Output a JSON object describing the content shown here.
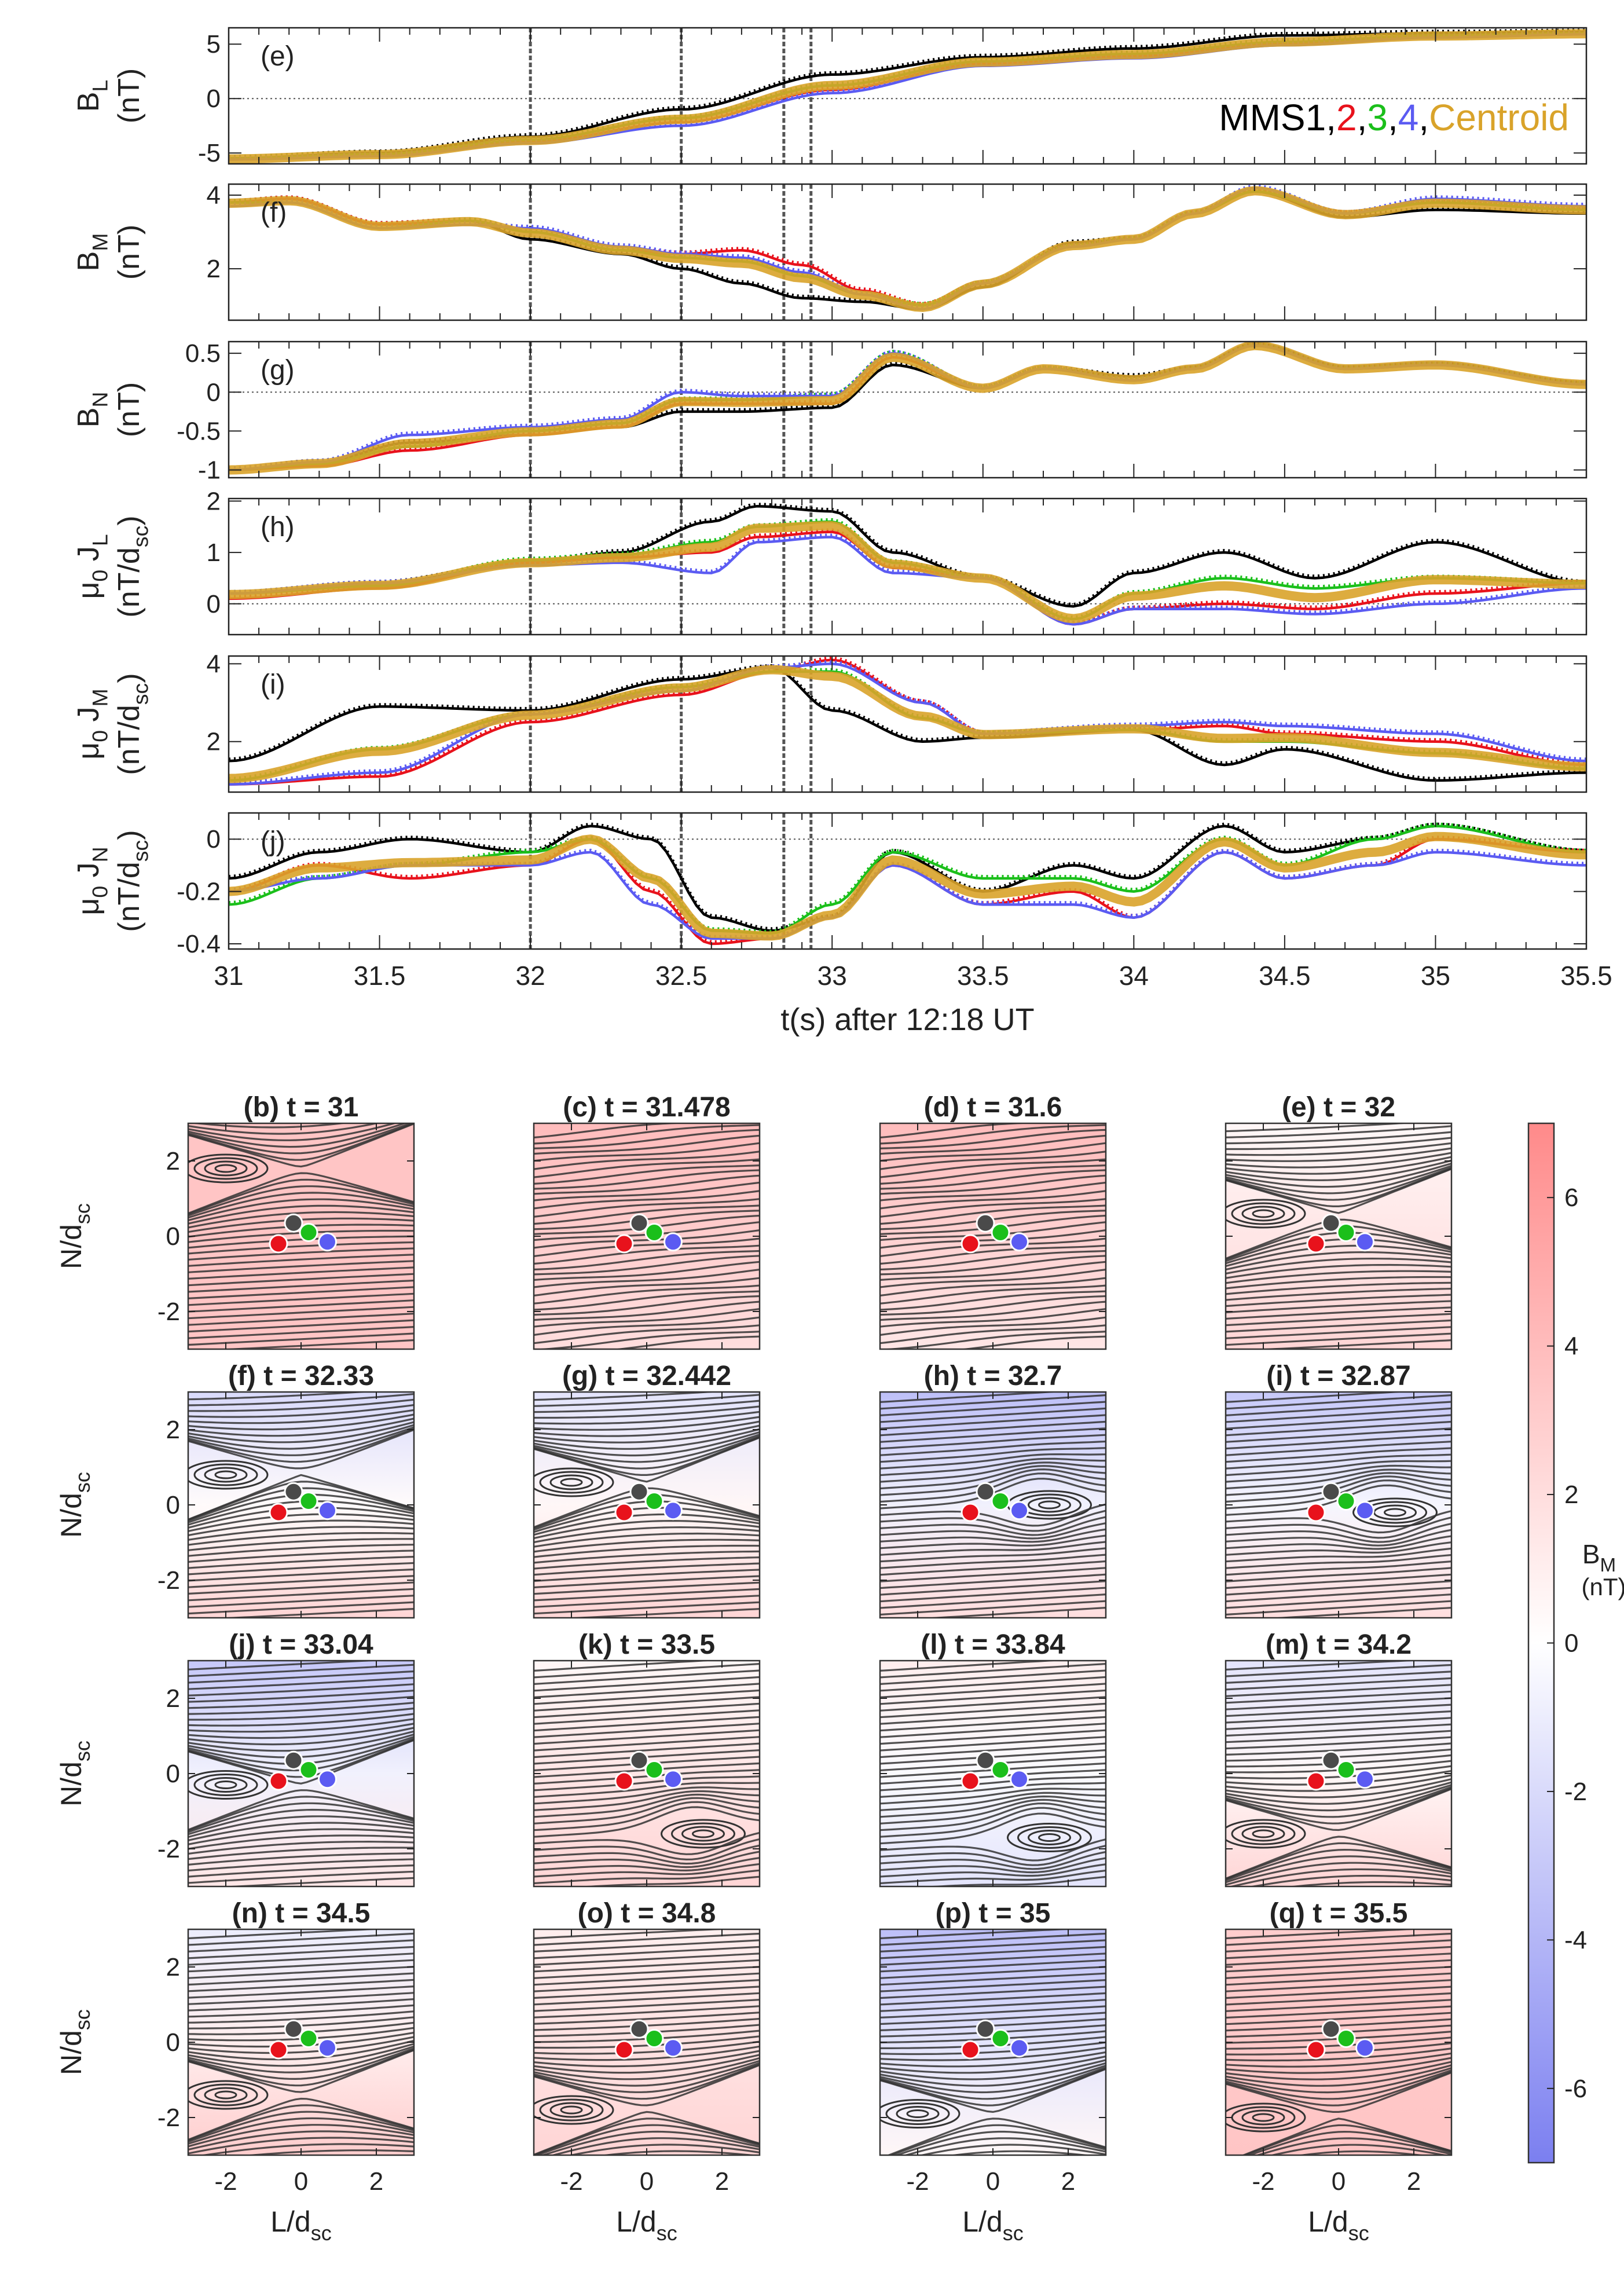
{
  "colors": {
    "mms1": "#000000",
    "mms2": "#e8121c",
    "mms3": "#1bbf1b",
    "mms4": "#5b5bf2",
    "centroid": "#d9a32a",
    "bm_positive": "#f08a8a",
    "bm_negative": "#7b7ff0",
    "streamline": "#333333"
  },
  "timeseries_panel": {
    "xlabel": "t(s) after 12:18 UT",
    "xlim": [
      31,
      35.5
    ],
    "xticks": [
      "31",
      "31.5",
      "32",
      "32.5",
      "33",
      "33.5",
      "34",
      "34.5",
      "35",
      "35.5"
    ],
    "legend": {
      "items": [
        {
          "text": "MMS1",
          "color": "#000000"
        },
        {
          "text": ",",
          "color": "#000000"
        },
        {
          "text": "2",
          "color": "#e8121c"
        },
        {
          "text": ",",
          "color": "#000000"
        },
        {
          "text": "3",
          "color": "#1bbf1b"
        },
        {
          "text": ",",
          "color": "#000000"
        },
        {
          "text": "4",
          "color": "#5b5bf2"
        },
        {
          "text": ",",
          "color": "#000000"
        },
        {
          "text": "Centroid",
          "color": "#d9a32a"
        }
      ]
    },
    "vertical_lines": [
      32.0,
      32.5,
      32.84,
      32.93
    ]
  },
  "chart_data": [
    {
      "type": "line",
      "panel_label": "(e)",
      "ylabel_lines": [
        "B_L",
        "(nT)"
      ],
      "ylim": [
        -6,
        6.5
      ],
      "yticks": [
        "5",
        "0",
        "-5"
      ],
      "ytick_values": [
        5,
        0,
        -5
      ],
      "zero_line": true,
      "x": [
        31,
        31.5,
        32,
        32.5,
        33,
        33.5,
        34,
        34.5,
        35,
        35.5
      ],
      "series": [
        {
          "name": "MMS1",
          "values": [
            -5.5,
            -5.0,
            -3.5,
            -1.0,
            2.2,
            3.8,
            4.6,
            5.8,
            6.0,
            6.1
          ]
        },
        {
          "name": "2",
          "values": [
            -5.6,
            -5.2,
            -4.0,
            -2.2,
            0.8,
            3.2,
            3.9,
            5.0,
            5.7,
            5.9
          ]
        },
        {
          "name": "3",
          "values": [
            -5.5,
            -5.1,
            -3.8,
            -1.8,
            1.2,
            3.4,
            4.1,
            5.2,
            5.8,
            6.0
          ]
        },
        {
          "name": "4",
          "values": [
            -5.6,
            -5.3,
            -4.1,
            -2.5,
            0.5,
            3.0,
            3.7,
            4.9,
            5.6,
            5.9
          ]
        },
        {
          "name": "Centroid",
          "values": [
            -5.55,
            -5.15,
            -3.85,
            -1.9,
            1.2,
            3.35,
            4.05,
            5.2,
            5.75,
            5.95
          ]
        }
      ]
    },
    {
      "type": "line",
      "panel_label": "(f)",
      "ylabel_lines": [
        "B_M",
        "(nT)"
      ],
      "ylim": [
        0.6,
        4.3
      ],
      "yticks": [
        "4",
        "2"
      ],
      "ytick_values": [
        4,
        2
      ],
      "zero_line": false,
      "x": [
        31,
        31.2,
        31.5,
        31.8,
        32,
        32.3,
        32.5,
        32.7,
        32.9,
        33.1,
        33.3,
        33.5,
        33.8,
        34,
        34.2,
        34.4,
        34.7,
        35,
        35.5
      ],
      "series": [
        {
          "name": "MMS1",
          "values": [
            3.8,
            3.9,
            3.2,
            3.3,
            2.8,
            2.4,
            2.0,
            1.6,
            1.2,
            1.1,
            0.9,
            1.5,
            2.7,
            2.8,
            3.5,
            4.1,
            3.4,
            3.6,
            3.5
          ]
        },
        {
          "name": "2",
          "values": [
            3.8,
            3.9,
            3.2,
            3.3,
            3.0,
            2.5,
            2.4,
            2.5,
            2.1,
            1.4,
            1.0,
            1.6,
            2.6,
            2.8,
            3.5,
            4.1,
            3.5,
            3.8,
            3.6
          ]
        },
        {
          "name": "3",
          "values": [
            3.8,
            3.8,
            3.1,
            3.3,
            3.0,
            2.5,
            2.3,
            2.2,
            1.8,
            1.3,
            1.0,
            1.6,
            2.6,
            2.8,
            3.5,
            4.1,
            3.5,
            3.8,
            3.6
          ]
        },
        {
          "name": "4",
          "values": [
            3.7,
            3.8,
            3.1,
            3.2,
            3.1,
            2.6,
            2.4,
            2.3,
            1.9,
            1.3,
            0.9,
            1.6,
            2.6,
            2.8,
            3.5,
            4.2,
            3.5,
            3.9,
            3.7
          ]
        },
        {
          "name": "Centroid",
          "values": [
            3.78,
            3.85,
            3.15,
            3.28,
            2.97,
            2.5,
            2.28,
            2.15,
            1.75,
            1.28,
            0.95,
            1.58,
            2.63,
            2.8,
            3.5,
            4.12,
            3.47,
            3.78,
            3.6
          ]
        }
      ]
    },
    {
      "type": "line",
      "panel_label": "(g)",
      "ylabel_lines": [
        "B_N",
        "(nT)"
      ],
      "ylim": [
        -1.1,
        0.65
      ],
      "yticks": [
        "0.5",
        "0",
        "-0.5",
        "-1"
      ],
      "ytick_values": [
        0.5,
        0,
        -0.5,
        -1
      ],
      "zero_line": true,
      "x": [
        31,
        31.3,
        31.6,
        32,
        32.3,
        32.5,
        32.7,
        33,
        33.2,
        33.5,
        33.7,
        34,
        34.2,
        34.4,
        34.7,
        35,
        35.5
      ],
      "series": [
        {
          "name": "MMS1",
          "values": [
            -1.0,
            -0.9,
            -0.65,
            -0.55,
            -0.45,
            -0.25,
            -0.25,
            -0.2,
            0.35,
            0.05,
            0.3,
            0.2,
            0.3,
            0.6,
            0.3,
            0.35,
            0.1
          ]
        },
        {
          "name": "2",
          "values": [
            -1.0,
            -0.95,
            -0.75,
            -0.55,
            -0.45,
            -0.15,
            -0.15,
            -0.15,
            0.45,
            0.05,
            0.3,
            0.15,
            0.3,
            0.6,
            0.3,
            0.35,
            0.1
          ]
        },
        {
          "name": "3",
          "values": [
            -1.0,
            -0.92,
            -0.7,
            -0.5,
            -0.4,
            -0.1,
            -0.1,
            -0.05,
            0.5,
            0.05,
            0.3,
            0.15,
            0.3,
            0.6,
            0.3,
            0.35,
            0.1
          ]
        },
        {
          "name": "4",
          "values": [
            -1.0,
            -0.9,
            -0.55,
            -0.45,
            -0.35,
            0.0,
            -0.05,
            -0.05,
            0.5,
            0.05,
            0.3,
            0.15,
            0.3,
            0.6,
            0.3,
            0.35,
            0.1
          ]
        },
        {
          "name": "Centroid",
          "values": [
            -1.0,
            -0.92,
            -0.66,
            -0.51,
            -0.41,
            -0.12,
            -0.13,
            -0.11,
            0.45,
            0.05,
            0.3,
            0.16,
            0.3,
            0.6,
            0.3,
            0.35,
            0.1
          ]
        }
      ]
    },
    {
      "type": "line",
      "panel_label": "(h)",
      "ylabel_lines": [
        "μ0 J_L",
        "(nT/d_sc)"
      ],
      "ylim": [
        -0.6,
        2.05
      ],
      "yticks": [
        "2",
        "1",
        "0"
      ],
      "ytick_values": [
        2,
        1,
        0
      ],
      "zero_line": true,
      "x": [
        31,
        31.5,
        32,
        32.3,
        32.6,
        32.75,
        33,
        33.2,
        33.5,
        33.8,
        34,
        34.3,
        34.6,
        35,
        35.5
      ],
      "series": [
        {
          "name": "MMS1",
          "values": [
            0.2,
            0.4,
            0.8,
            1.0,
            1.6,
            1.9,
            1.8,
            1.0,
            0.5,
            -0.05,
            0.6,
            1.0,
            0.5,
            1.2,
            0.4
          ]
        },
        {
          "name": "2",
          "values": [
            0.1,
            0.3,
            0.8,
            0.9,
            1.0,
            1.3,
            1.4,
            0.7,
            0.5,
            -0.4,
            -0.1,
            0.0,
            -0.1,
            0.2,
            0.4
          ]
        },
        {
          "name": "3",
          "values": [
            0.2,
            0.35,
            0.85,
            0.95,
            1.2,
            1.5,
            1.6,
            0.8,
            0.5,
            -0.3,
            0.2,
            0.5,
            0.3,
            0.5,
            0.4
          ]
        },
        {
          "name": "4",
          "values": [
            0.2,
            0.4,
            0.75,
            0.8,
            0.6,
            1.2,
            1.3,
            0.6,
            0.5,
            -0.4,
            -0.1,
            -0.1,
            -0.2,
            0.0,
            0.3
          ]
        },
        {
          "name": "Centroid",
          "values": [
            0.18,
            0.36,
            0.8,
            0.9,
            1.1,
            1.47,
            1.52,
            0.77,
            0.5,
            -0.29,
            0.15,
            0.35,
            0.12,
            0.47,
            0.38
          ]
        }
      ]
    },
    {
      "type": "line",
      "panel_label": "(i)",
      "ylabel_lines": [
        "μ0 J_M",
        "(nT/d_sc)"
      ],
      "ylim": [
        0.7,
        4.2
      ],
      "yticks": [
        "4",
        "2"
      ],
      "ytick_values": [
        4,
        2
      ],
      "zero_line": false,
      "x": [
        31,
        31.5,
        32,
        32.5,
        32.8,
        33.0,
        33.3,
        33.5,
        34,
        34.3,
        34.5,
        35,
        35.5
      ],
      "series": [
        {
          "name": "MMS1",
          "values": [
            1.5,
            2.9,
            2.8,
            3.6,
            3.9,
            2.8,
            2.0,
            2.1,
            2.3,
            1.4,
            1.8,
            1.0,
            1.2
          ]
        },
        {
          "name": "2",
          "values": [
            0.9,
            1.1,
            2.5,
            3.2,
            3.8,
            4.1,
            3.0,
            2.2,
            2.3,
            2.4,
            2.2,
            2.0,
            1.4
          ]
        },
        {
          "name": "3",
          "values": [
            1.0,
            1.8,
            2.7,
            3.4,
            3.8,
            3.8,
            2.6,
            2.2,
            2.3,
            2.0,
            2.0,
            1.7,
            1.3
          ]
        },
        {
          "name": "4",
          "values": [
            0.9,
            1.2,
            2.7,
            3.3,
            3.9,
            4.0,
            3.0,
            2.2,
            2.4,
            2.5,
            2.4,
            2.2,
            1.5
          ]
        },
        {
          "name": "Centroid",
          "values": [
            1.05,
            1.75,
            2.68,
            3.38,
            3.85,
            3.68,
            2.65,
            2.18,
            2.33,
            2.08,
            2.1,
            1.72,
            1.35
          ]
        }
      ]
    },
    {
      "type": "line",
      "panel_label": "(j)",
      "ylabel_lines": [
        "μ0 J_N",
        "(nT/d_sc)"
      ],
      "ylim": [
        -0.42,
        0.1
      ],
      "yticks": [
        "0",
        "-0.2",
        "-0.4"
      ],
      "ytick_values": [
        0,
        -0.2,
        -0.4
      ],
      "zero_line": true,
      "x": [
        31,
        31.3,
        31.6,
        32,
        32.2,
        32.4,
        32.6,
        32.8,
        33,
        33.2,
        33.5,
        33.8,
        34,
        34.3,
        34.5,
        34.8,
        35,
        35.5
      ],
      "series": [
        {
          "name": "MMS1",
          "values": [
            -0.15,
            -0.05,
            0.0,
            -0.05,
            0.05,
            0.0,
            -0.3,
            -0.35,
            -0.3,
            -0.05,
            -0.2,
            -0.1,
            -0.15,
            0.05,
            -0.05,
            0.0,
            0.05,
            -0.05
          ]
        },
        {
          "name": "2",
          "values": [
            -0.2,
            -0.1,
            -0.15,
            -0.1,
            0.0,
            -0.2,
            -0.4,
            -0.38,
            -0.3,
            -0.1,
            -0.25,
            -0.2,
            -0.3,
            -0.05,
            -0.15,
            -0.1,
            0.0,
            -0.05
          ]
        },
        {
          "name": "3",
          "values": [
            -0.25,
            -0.15,
            -0.1,
            -0.05,
            0.0,
            -0.15,
            -0.35,
            -0.36,
            -0.25,
            -0.05,
            -0.15,
            -0.15,
            -0.2,
            0.0,
            -0.1,
            0.0,
            0.05,
            -0.05
          ]
        },
        {
          "name": "4",
          "values": [
            -0.2,
            -0.15,
            -0.1,
            -0.1,
            -0.05,
            -0.25,
            -0.38,
            -0.38,
            -0.3,
            -0.1,
            -0.25,
            -0.25,
            -0.3,
            -0.05,
            -0.15,
            -0.1,
            -0.05,
            -0.1
          ]
        },
        {
          "name": "Centroid",
          "values": [
            -0.2,
            -0.11,
            -0.09,
            -0.08,
            0.0,
            -0.15,
            -0.36,
            -0.37,
            -0.29,
            -0.08,
            -0.21,
            -0.18,
            -0.24,
            -0.01,
            -0.11,
            -0.05,
            0.01,
            -0.06
          ]
        }
      ]
    },
    {
      "type": "heatmap",
      "description_panels": "streamline maps of B field in L-N plane",
      "xlabel": "L/d_sc",
      "ylabel": "N/d_sc",
      "xticks": [
        "-2",
        "0",
        "2"
      ],
      "xtick_values": [
        -2,
        0,
        2
      ],
      "yticks": [
        "2",
        "0",
        "-2"
      ],
      "ytick_values": [
        2,
        0,
        -2
      ],
      "lim": [
        -3,
        3
      ],
      "colorbar": {
        "label": "B_M",
        "unit": "(nT)",
        "range": [
          -7,
          7
        ],
        "ticks": [
          "6",
          "4",
          "2",
          "0",
          "-2",
          "-4",
          "-6"
        ],
        "tick_values": [
          6,
          4,
          2,
          0,
          -2,
          -4,
          -6
        ]
      },
      "spacecraft": [
        {
          "name": "MMS1",
          "L": -0.2,
          "N": 0.35,
          "color": "#4a4a4a"
        },
        {
          "name": "MMS2",
          "L": -0.6,
          "N": -0.2,
          "color": "#e8121c"
        },
        {
          "name": "MMS3",
          "L": 0.2,
          "N": 0.1,
          "color": "#1bbf1b"
        },
        {
          "name": "MMS4",
          "L": 0.7,
          "N": -0.15,
          "color": "#5b5bf2"
        }
      ],
      "maps": [
        {
          "title": "(b) t = 31",
          "top_bm": 3.5,
          "bottom_bm": 3.5,
          "structure": "xline",
          "struct_N": 1.8
        },
        {
          "title": "(c) t = 31.478",
          "top_bm": 4.0,
          "bottom_bm": 2.0,
          "structure": "none",
          "struct_N": 1.5
        },
        {
          "title": "(d) t = 31.6",
          "top_bm": 4.0,
          "bottom_bm": 1.5,
          "structure": "none",
          "struct_N": 1.3
        },
        {
          "title": "(e) t = 32",
          "top_bm": 0.5,
          "bottom_bm": 2.5,
          "structure": "xline",
          "struct_N": 0.6
        },
        {
          "title": "(f) t = 32.33",
          "top_bm": -2.0,
          "bottom_bm": 2.5,
          "structure": "xline",
          "struct_N": 0.8
        },
        {
          "title": "(g) t = 32.442",
          "top_bm": -1.5,
          "bottom_bm": 2.5,
          "structure": "xline",
          "struct_N": 0.6
        },
        {
          "title": "(h) t = 32.7",
          "top_bm": -3.5,
          "bottom_bm": 2.0,
          "structure": "oline",
          "struct_N": 0.0
        },
        {
          "title": "(i) t = 32.87",
          "top_bm": -3.0,
          "bottom_bm": 2.0,
          "structure": "oline",
          "struct_N": -0.2
        },
        {
          "title": "(j) t = 33.04",
          "top_bm": -3.0,
          "bottom_bm": 1.5,
          "structure": "xline",
          "struct_N": -0.3
        },
        {
          "title": "(k) t = 33.5",
          "top_bm": 0.5,
          "bottom_bm": 2.5,
          "structure": "oline",
          "struct_N": -1.6
        },
        {
          "title": "(l) t = 33.84",
          "top_bm": 1.0,
          "bottom_bm": -1.5,
          "structure": "oline",
          "struct_N": -1.7
        },
        {
          "title": "(m) t = 34.2",
          "top_bm": -1.5,
          "bottom_bm": 2.5,
          "structure": "xline",
          "struct_N": -1.6
        },
        {
          "title": "(n) t = 34.5",
          "top_bm": -1.0,
          "bottom_bm": 3.0,
          "structure": "xline",
          "struct_N": -1.4
        },
        {
          "title": "(o) t = 34.8",
          "top_bm": 1.0,
          "bottom_bm": 2.5,
          "structure": "xline",
          "struct_N": -1.8
        },
        {
          "title": "(p) t = 35",
          "top_bm": -3.5,
          "bottom_bm": 0.5,
          "structure": "xline",
          "struct_N": -1.9
        },
        {
          "title": "(q) t = 35.5",
          "top_bm": 3.0,
          "bottom_bm": 3.5,
          "structure": "xline",
          "struct_N": -2.0
        }
      ]
    }
  ]
}
